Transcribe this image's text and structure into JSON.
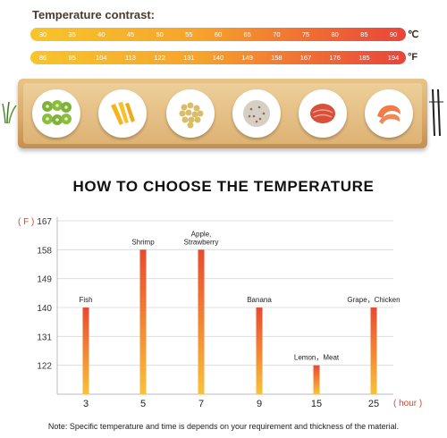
{
  "temperature_contrast": {
    "title": "Temperature contrast:",
    "celsius_unit": "℃",
    "fahrenheit_unit": "°F",
    "celsius_values": [
      "30",
      "35",
      "40",
      "45",
      "50",
      "55",
      "60",
      "65",
      "70",
      "75",
      "80",
      "85",
      "90"
    ],
    "fahrenheit_values": [
      "86",
      "95",
      "104",
      "113",
      "122",
      "131",
      "140",
      "149",
      "158",
      "167",
      "176",
      "185",
      "194"
    ]
  },
  "chart_data": {
    "type": "bar",
    "title": "HOW TO CHOOSE THE TEMPERATURE",
    "ylabel": "( F )",
    "xlabel": "( hour )",
    "categories": [
      "3",
      "5",
      "7",
      "9",
      "15",
      "25"
    ],
    "values": [
      140,
      158,
      158,
      140,
      122,
      140
    ],
    "bar_labels": [
      "Fish",
      "Shrimp",
      "Apple,\nStrawberry",
      "Banana",
      "Lemon，Meat",
      "Grape，Chicken"
    ],
    "yticks": [
      122,
      131,
      140,
      149,
      158,
      167
    ],
    "ylim": [
      113,
      167
    ],
    "grid": true,
    "colors": {
      "bar_top": "#ea4a2e",
      "bar_bottom": "#f9c13a",
      "grid": "#d8d8d8"
    }
  },
  "note": "Note: Specific temperature and time is depends on your requirement and thickness of the material.",
  "plates": [
    {
      "icon": "kiwi-icon"
    },
    {
      "icon": "mango-icon"
    },
    {
      "icon": "soybean-icon"
    },
    {
      "icon": "rice-icon"
    },
    {
      "icon": "meat-icon"
    },
    {
      "icon": "shrimp-icon"
    }
  ]
}
